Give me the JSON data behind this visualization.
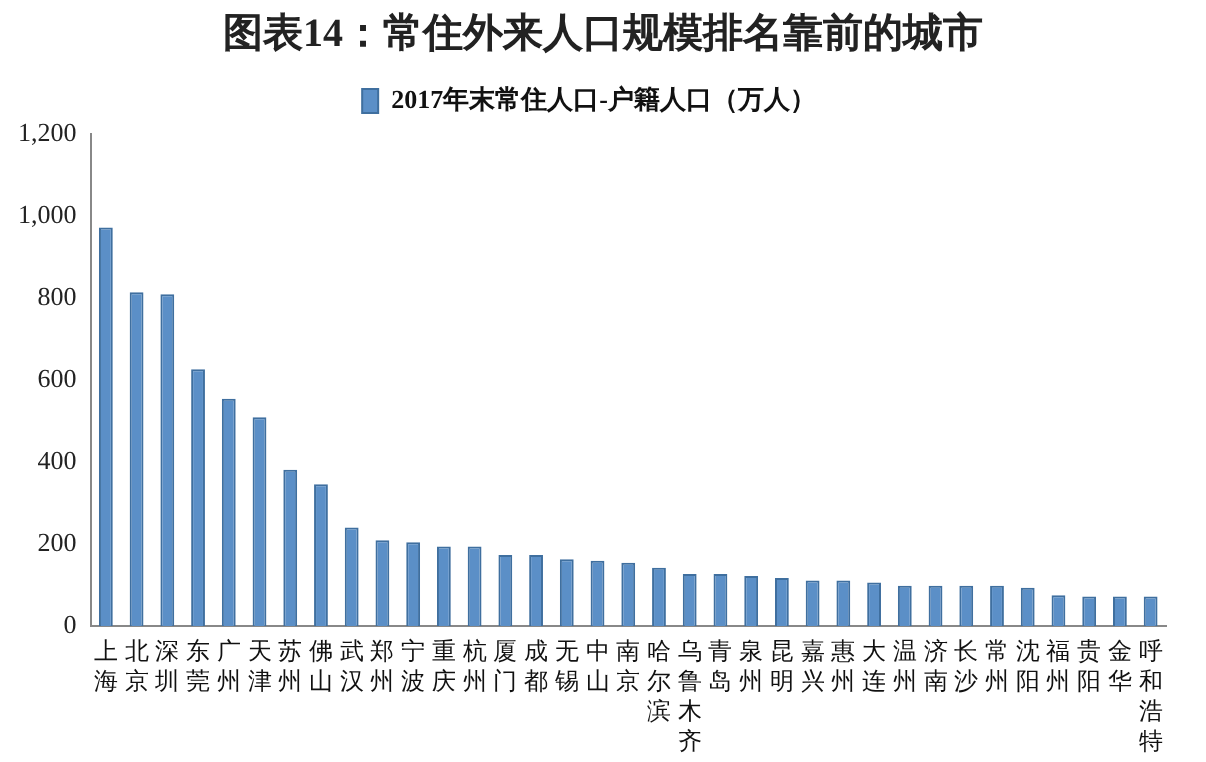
{
  "chart_data": {
    "type": "bar",
    "title": "图表14：常住外来人口规模排名靠前的城市",
    "categories": [
      "上海",
      "北京",
      "深圳",
      "东莞",
      "广州",
      "天津",
      "苏州",
      "佛山",
      "武汉",
      "郑州",
      "宁波",
      "重庆",
      "杭州",
      "厦门",
      "成都",
      "无锡",
      "中山",
      "南京",
      "哈尔滨",
      "乌鲁木齐",
      "青岛",
      "泉州",
      "昆明",
      "嘉兴",
      "惠州",
      "大连",
      "温州",
      "济南",
      "长沙",
      "常州",
      "沈阳",
      "福州",
      "贵阳",
      "金华",
      "呼和浩特"
    ],
    "series": [
      {
        "name": "2017年末常住人口-户籍人口（万人）",
        "color": "#5b8fc7",
        "values": [
          972,
          814,
          809,
          626,
          554,
          509,
          381,
          346,
          240,
          209,
          204,
          194,
          194,
          173,
          173,
          163,
          159,
          154,
          142,
          127,
          127,
          122,
          117,
          111,
          111,
          106,
          98,
          98,
          98,
          98,
          93,
          75,
          72,
          72,
          72
        ]
      }
    ],
    "ylim": [
      0,
      1200
    ],
    "yticks": [
      {
        "value": 0,
        "label": "0"
      },
      {
        "value": 200,
        "label": "200"
      },
      {
        "value": 400,
        "label": "400"
      },
      {
        "value": 600,
        "label": "600"
      },
      {
        "value": 800,
        "label": "800"
      },
      {
        "value": 1000,
        "label": "1,000"
      },
      {
        "value": 1200,
        "label": "1,200"
      }
    ],
    "grid": false,
    "legend": "top"
  }
}
